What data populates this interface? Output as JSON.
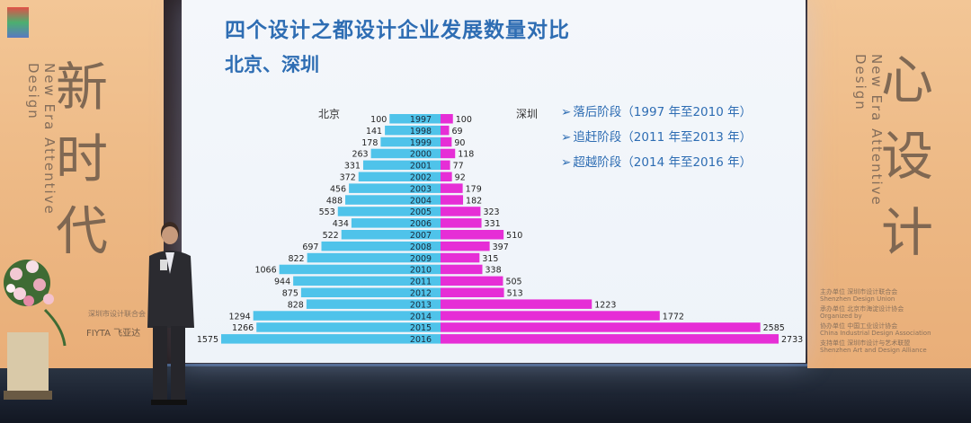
{
  "banner_left": {
    "chars": [
      "新",
      "时",
      "代"
    ],
    "vertical_en": "New Era  Attentive Design",
    "sponsor1": "深圳市设计联合会",
    "sponsor2": "FIYTA 飞亚达"
  },
  "banner_right": {
    "chars": [
      "心",
      "设",
      "计"
    ],
    "vertical_en": "New Era  Attentive Design",
    "credits": [
      "主办单位  深圳市设计联合会",
      "Shenzhen Design Union",
      "承办单位  北京市海淀设计协会",
      "Organized by",
      "协办单位  中国工业设计协会",
      "China Industrial Design Association",
      "支持单位  深圳市设计与艺术联盟",
      "Shenzhen Art and Design Alliance"
    ]
  },
  "slide": {
    "title": "四个设计之都设计企业发展数量对比",
    "subtitle": "北京、深圳",
    "legend": [
      "落后阶段（1997 年至2010 年）",
      "追赶阶段（2011 年至2013 年）",
      "超越阶段（2014 年至2016 年）"
    ]
  },
  "chart_data": {
    "type": "bar",
    "orientation": "horizontal-butterfly",
    "title": "四个设计之都设计企业发展数量对比",
    "subtitle": "北京、深圳",
    "categories": [
      "1997",
      "1998",
      "1999",
      "2000",
      "2001",
      "2002",
      "2003",
      "2004",
      "2005",
      "2006",
      "2007",
      "2008",
      "2009",
      "2010",
      "2011",
      "2012",
      "2013",
      "2014",
      "2015",
      "2016"
    ],
    "series": [
      {
        "name": "北京",
        "color": "#4fc3ea",
        "side": "left",
        "values": [
          100,
          141,
          178,
          263,
          331,
          372,
          456,
          488,
          553,
          434,
          522,
          697,
          822,
          1066,
          944,
          875,
          828,
          1294,
          1266,
          1575
        ]
      },
      {
        "name": "深圳",
        "color": "#e62ed6",
        "side": "right",
        "values": [
          100,
          69,
          90,
          118,
          77,
          92,
          179,
          182,
          323,
          331,
          510,
          397,
          315,
          338,
          505,
          513,
          1223,
          1772,
          2585,
          2733
        ]
      }
    ]
  },
  "colors": {
    "title": "#2e6db3",
    "beijing": "#4fc3ea",
    "shenzhen": "#e62ed6",
    "year_box": "#4fc3ea"
  }
}
